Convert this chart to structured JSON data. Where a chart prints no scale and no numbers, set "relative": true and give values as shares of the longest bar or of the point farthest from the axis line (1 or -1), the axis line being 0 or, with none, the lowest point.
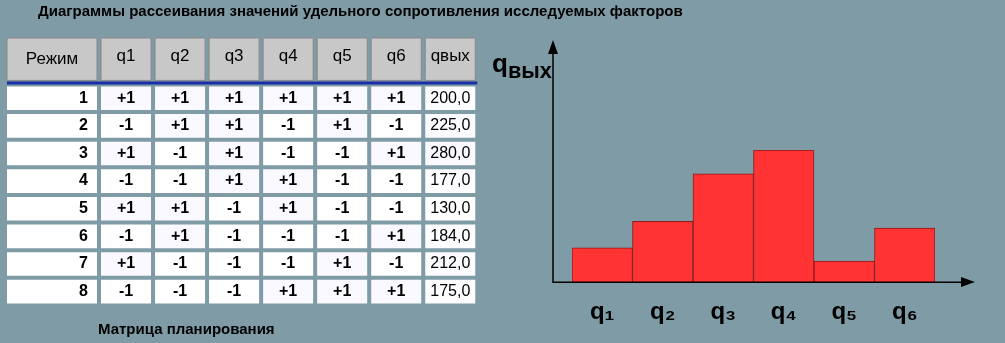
{
  "chart_data": [
    {
      "type": "heatmap",
      "title": "Диаграммы рассеивания значений удельного сопротивления исследуемых факторов",
      "xlabel": "Матрица планирования",
      "ylabel": "Режим",
      "categories": [
        "q1",
        "q2",
        "q3",
        "q4",
        "q5",
        "q6",
        "qвых"
      ],
      "y_categories": [
        "1",
        "2",
        "3",
        "4",
        "5",
        "6",
        "7",
        "8"
      ],
      "cells": [
        [
          1,
          1,
          1,
          1,
          1,
          1,
          200.0
        ],
        [
          -1,
          1,
          1,
          -1,
          1,
          -1,
          225.0
        ],
        [
          1,
          -1,
          1,
          -1,
          -1,
          1,
          280.0
        ],
        [
          -1,
          -1,
          1,
          1,
          -1,
          -1,
          177.0
        ],
        [
          1,
          1,
          -1,
          1,
          -1,
          -1,
          130.0
        ],
        [
          -1,
          1,
          -1,
          -1,
          -1,
          1,
          184.0
        ],
        [
          1,
          -1,
          -1,
          -1,
          1,
          -1,
          212.0
        ],
        [
          -1,
          -1,
          -1,
          1,
          1,
          1,
          175.0
        ]
      ],
      "cell_labels": [
        [
          "+1",
          "+1",
          "+1",
          "+1",
          "+1",
          "+1",
          "200,0"
        ],
        [
          "-1",
          "+1",
          "+1",
          "-1",
          "+1",
          "-1",
          "225,0"
        ],
        [
          "+1",
          "-1",
          "+1",
          "-1",
          "-1",
          "+1",
          "280,0"
        ],
        [
          "-1",
          "-1",
          "+1",
          "+1",
          "-1",
          "-1",
          "177,0"
        ],
        [
          "+1",
          "+1",
          "-1",
          "+1",
          "-1",
          "-1",
          "130,0"
        ],
        [
          "-1",
          "+1",
          "-1",
          "-1",
          "-1",
          "+1",
          "184,0"
        ],
        [
          "+1",
          "-1",
          "-1",
          "-1",
          "+1",
          "-1",
          "212,0"
        ],
        [
          "-1",
          "-1",
          "-1",
          "+1",
          "+1",
          "+1",
          "175,0"
        ]
      ]
    },
    {
      "type": "bar",
      "ylabel": "q$_{вых}$",
      "categories": [
        "q₁",
        "q₂",
        "q₃",
        "q₄",
        "q₅",
        "q₆"
      ],
      "values": [
        0.26,
        0.46,
        0.82,
        1,
        0.16,
        0.41
      ],
      "color": "#ff3333",
      "relative": true
    }
  ]
}
